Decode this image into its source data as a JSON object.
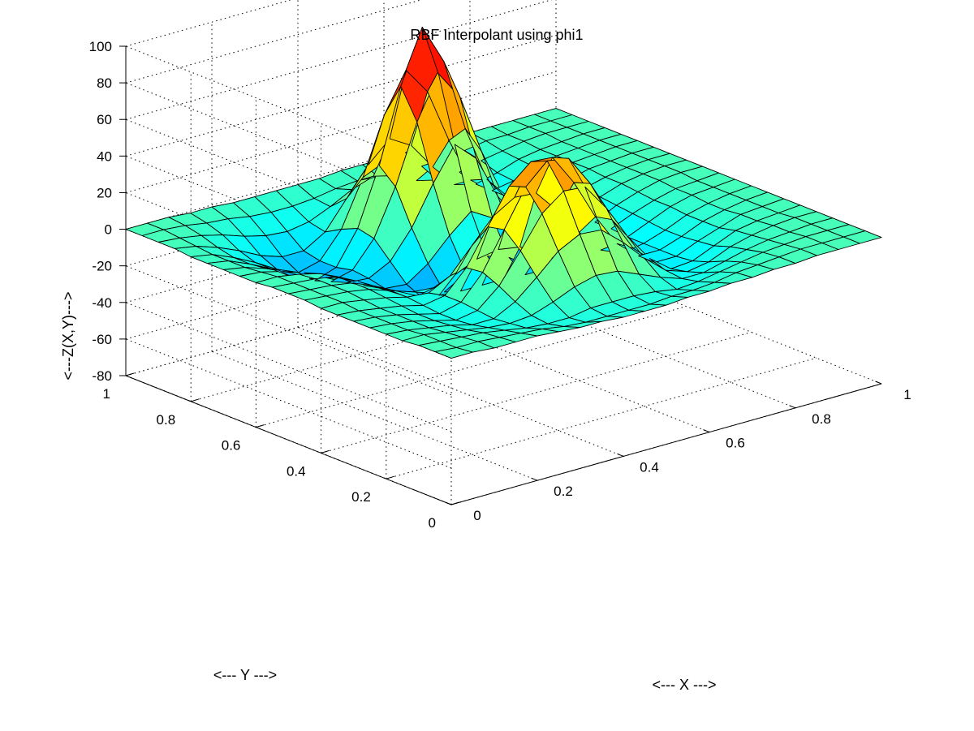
{
  "chart_data": {
    "type": "surface",
    "title": "RBF Interpolant using phi1",
    "xlabel": "<--- X --->",
    "ylabel": "<--- Y --->",
    "zlabel": "<---Z(X,Y)--->",
    "xlim": [
      0,
      1
    ],
    "ylim": [
      0,
      1
    ],
    "zlim": [
      -80,
      100
    ],
    "x_ticks": [
      0,
      0.2,
      0.4,
      0.6,
      0.8,
      1
    ],
    "y_ticks": [
      0,
      0.2,
      0.4,
      0.6,
      0.8,
      1
    ],
    "z_ticks": [
      -80,
      -60,
      -40,
      -20,
      0,
      20,
      40,
      60,
      80,
      100
    ],
    "x_tick_labels": [
      "0",
      "0.2",
      "0.4",
      "0.6",
      "0.8",
      "1"
    ],
    "y_tick_labels": [
      "0",
      "0.2",
      "0.4",
      "0.6",
      "0.8",
      "1"
    ],
    "z_tick_labels": [
      "-80",
      "-60",
      "-40",
      "-20",
      "0",
      "20",
      "40",
      "60",
      "80",
      "100"
    ],
    "grid": true,
    "colormap": "jet",
    "color_limits": [
      -80,
      100
    ],
    "mesh": {
      "x": [
        0,
        0.05,
        0.1,
        0.15,
        0.2,
        0.25,
        0.3,
        0.35,
        0.4,
        0.45,
        0.5,
        0.55,
        0.6,
        0.65,
        0.7,
        0.75,
        0.8,
        0.85,
        0.9,
        0.95,
        1
      ],
      "y": [
        0,
        0.05,
        0.1,
        0.15,
        0.2,
        0.25,
        0.3,
        0.35,
        0.4,
        0.45,
        0.5,
        0.55,
        0.6,
        0.65,
        0.7,
        0.75,
        0.8,
        0.85,
        0.9,
        0.95,
        1
      ],
      "z": [
        [
          0,
          0,
          -1,
          -1,
          -1,
          -2,
          -3,
          -3,
          -4,
          -4,
          -4,
          -3,
          -3,
          -2,
          -2,
          -1,
          -1,
          0,
          0,
          0,
          0
        ],
        [
          0,
          -1,
          -1,
          -2,
          -3,
          -4,
          -6,
          -7,
          -7,
          -7,
          -7,
          -6,
          -6,
          -5,
          -3,
          -2,
          -1,
          0,
          0,
          0,
          0
        ],
        [
          0,
          -1,
          -2,
          -3,
          -5,
          -7,
          -8,
          -8,
          -6,
          -6,
          -6,
          -7,
          -9,
          -8,
          -6,
          -4,
          -2,
          -1,
          0,
          0,
          0
        ],
        [
          -1,
          -1,
          -3,
          -5,
          -7,
          -8,
          -7,
          -3,
          2,
          5,
          4,
          -1,
          -6,
          -10,
          -10,
          -7,
          -4,
          -2,
          -1,
          0,
          0
        ],
        [
          -1,
          -2,
          -4,
          -6,
          -9,
          -9,
          -3,
          7,
          18,
          24,
          23,
          13,
          1,
          -9,
          -13,
          -11,
          -6,
          -3,
          -1,
          0,
          0
        ],
        [
          -1,
          -2,
          -4,
          -7,
          -10,
          -8,
          2,
          18,
          35,
          44,
          43,
          28,
          9,
          -6,
          -15,
          -14,
          -9,
          -4,
          -2,
          -1,
          0
        ],
        [
          -1,
          -2,
          -4,
          -7,
          -10,
          -7,
          6,
          26,
          46,
          57,
          55,
          38,
          15,
          -4,
          -15,
          -15,
          -10,
          -6,
          -2,
          -1,
          0
        ],
        [
          -1,
          -2,
          -4,
          -6,
          -9,
          -7,
          5,
          24,
          43,
          53,
          52,
          35,
          13,
          -5,
          -15,
          -15,
          -11,
          -6,
          -3,
          -1,
          0
        ],
        [
          -1,
          -1,
          -3,
          -5,
          -8,
          -9,
          -3,
          10,
          23,
          30,
          29,
          16,
          1,
          -12,
          -17,
          -15,
          -11,
          -6,
          -3,
          -1,
          0
        ],
        [
          0,
          -1,
          -2,
          -4,
          -8,
          -12,
          -13,
          -9,
          -4,
          -2,
          -4,
          -9,
          -15,
          -19,
          -19,
          -15,
          -10,
          -5,
          -2,
          -1,
          0
        ],
        [
          0,
          -1,
          -2,
          -4,
          -9,
          -15,
          -21,
          -24,
          -25,
          -25,
          -25,
          -26,
          -26,
          -25,
          -20,
          -14,
          -9,
          -5,
          -2,
          -1,
          0
        ],
        [
          0,
          -1,
          -2,
          -4,
          -10,
          -17,
          -24,
          -29,
          -29,
          -22,
          -16,
          -20,
          -28,
          -27,
          -21,
          -14,
          -8,
          -4,
          -1,
          0,
          0
        ],
        [
          -1,
          -1,
          -3,
          -6,
          -12,
          -19,
          -24,
          -25,
          -17,
          -5,
          5,
          -2,
          -16,
          -23,
          -20,
          -13,
          -7,
          -3,
          -1,
          0,
          0
        ],
        [
          -1,
          -2,
          -5,
          -9,
          -15,
          -21,
          -22,
          -16,
          -1,
          20,
          38,
          27,
          3,
          -14,
          -17,
          -12,
          -6,
          -3,
          -1,
          0,
          0
        ],
        [
          -1,
          -3,
          -7,
          -12,
          -19,
          -24,
          -21,
          -7,
          18,
          50,
          73,
          57,
          24,
          -3,
          -13,
          -10,
          -5,
          -2,
          -1,
          0,
          0
        ],
        [
          -1,
          -3,
          -8,
          -14,
          -22,
          -27,
          -23,
          -5,
          26,
          66,
          95,
          73,
          33,
          2,
          -11,
          -9,
          -5,
          -2,
          -1,
          0,
          0
        ],
        [
          -1,
          -3,
          -8,
          -14,
          -21,
          -26,
          -23,
          -9,
          16,
          47,
          68,
          53,
          23,
          -2,
          -11,
          -9,
          -5,
          -2,
          -1,
          0,
          0
        ],
        [
          0,
          -2,
          -6,
          -11,
          -17,
          -21,
          -21,
          -14,
          1,
          16,
          27,
          20,
          5,
          -8,
          -11,
          -8,
          -4,
          -2,
          -1,
          0,
          0
        ],
        [
          0,
          -1,
          -3,
          -6,
          -10,
          -13,
          -14,
          -12,
          -7,
          -1,
          3,
          0,
          -6,
          -9,
          -8,
          -5,
          -3,
          -1,
          0,
          0,
          0
        ],
        [
          0,
          0,
          -1,
          -3,
          -4,
          -6,
          -7,
          -7,
          -6,
          -4,
          -3,
          -4,
          -5,
          -5,
          -4,
          -3,
          -1,
          -1,
          0,
          0,
          0
        ],
        [
          0,
          0,
          0,
          -1,
          -1,
          -2,
          -2,
          -2,
          -2,
          -2,
          -1,
          -1,
          -1,
          -1,
          -1,
          -1,
          0,
          0,
          0,
          0,
          0
        ]
      ]
    }
  }
}
